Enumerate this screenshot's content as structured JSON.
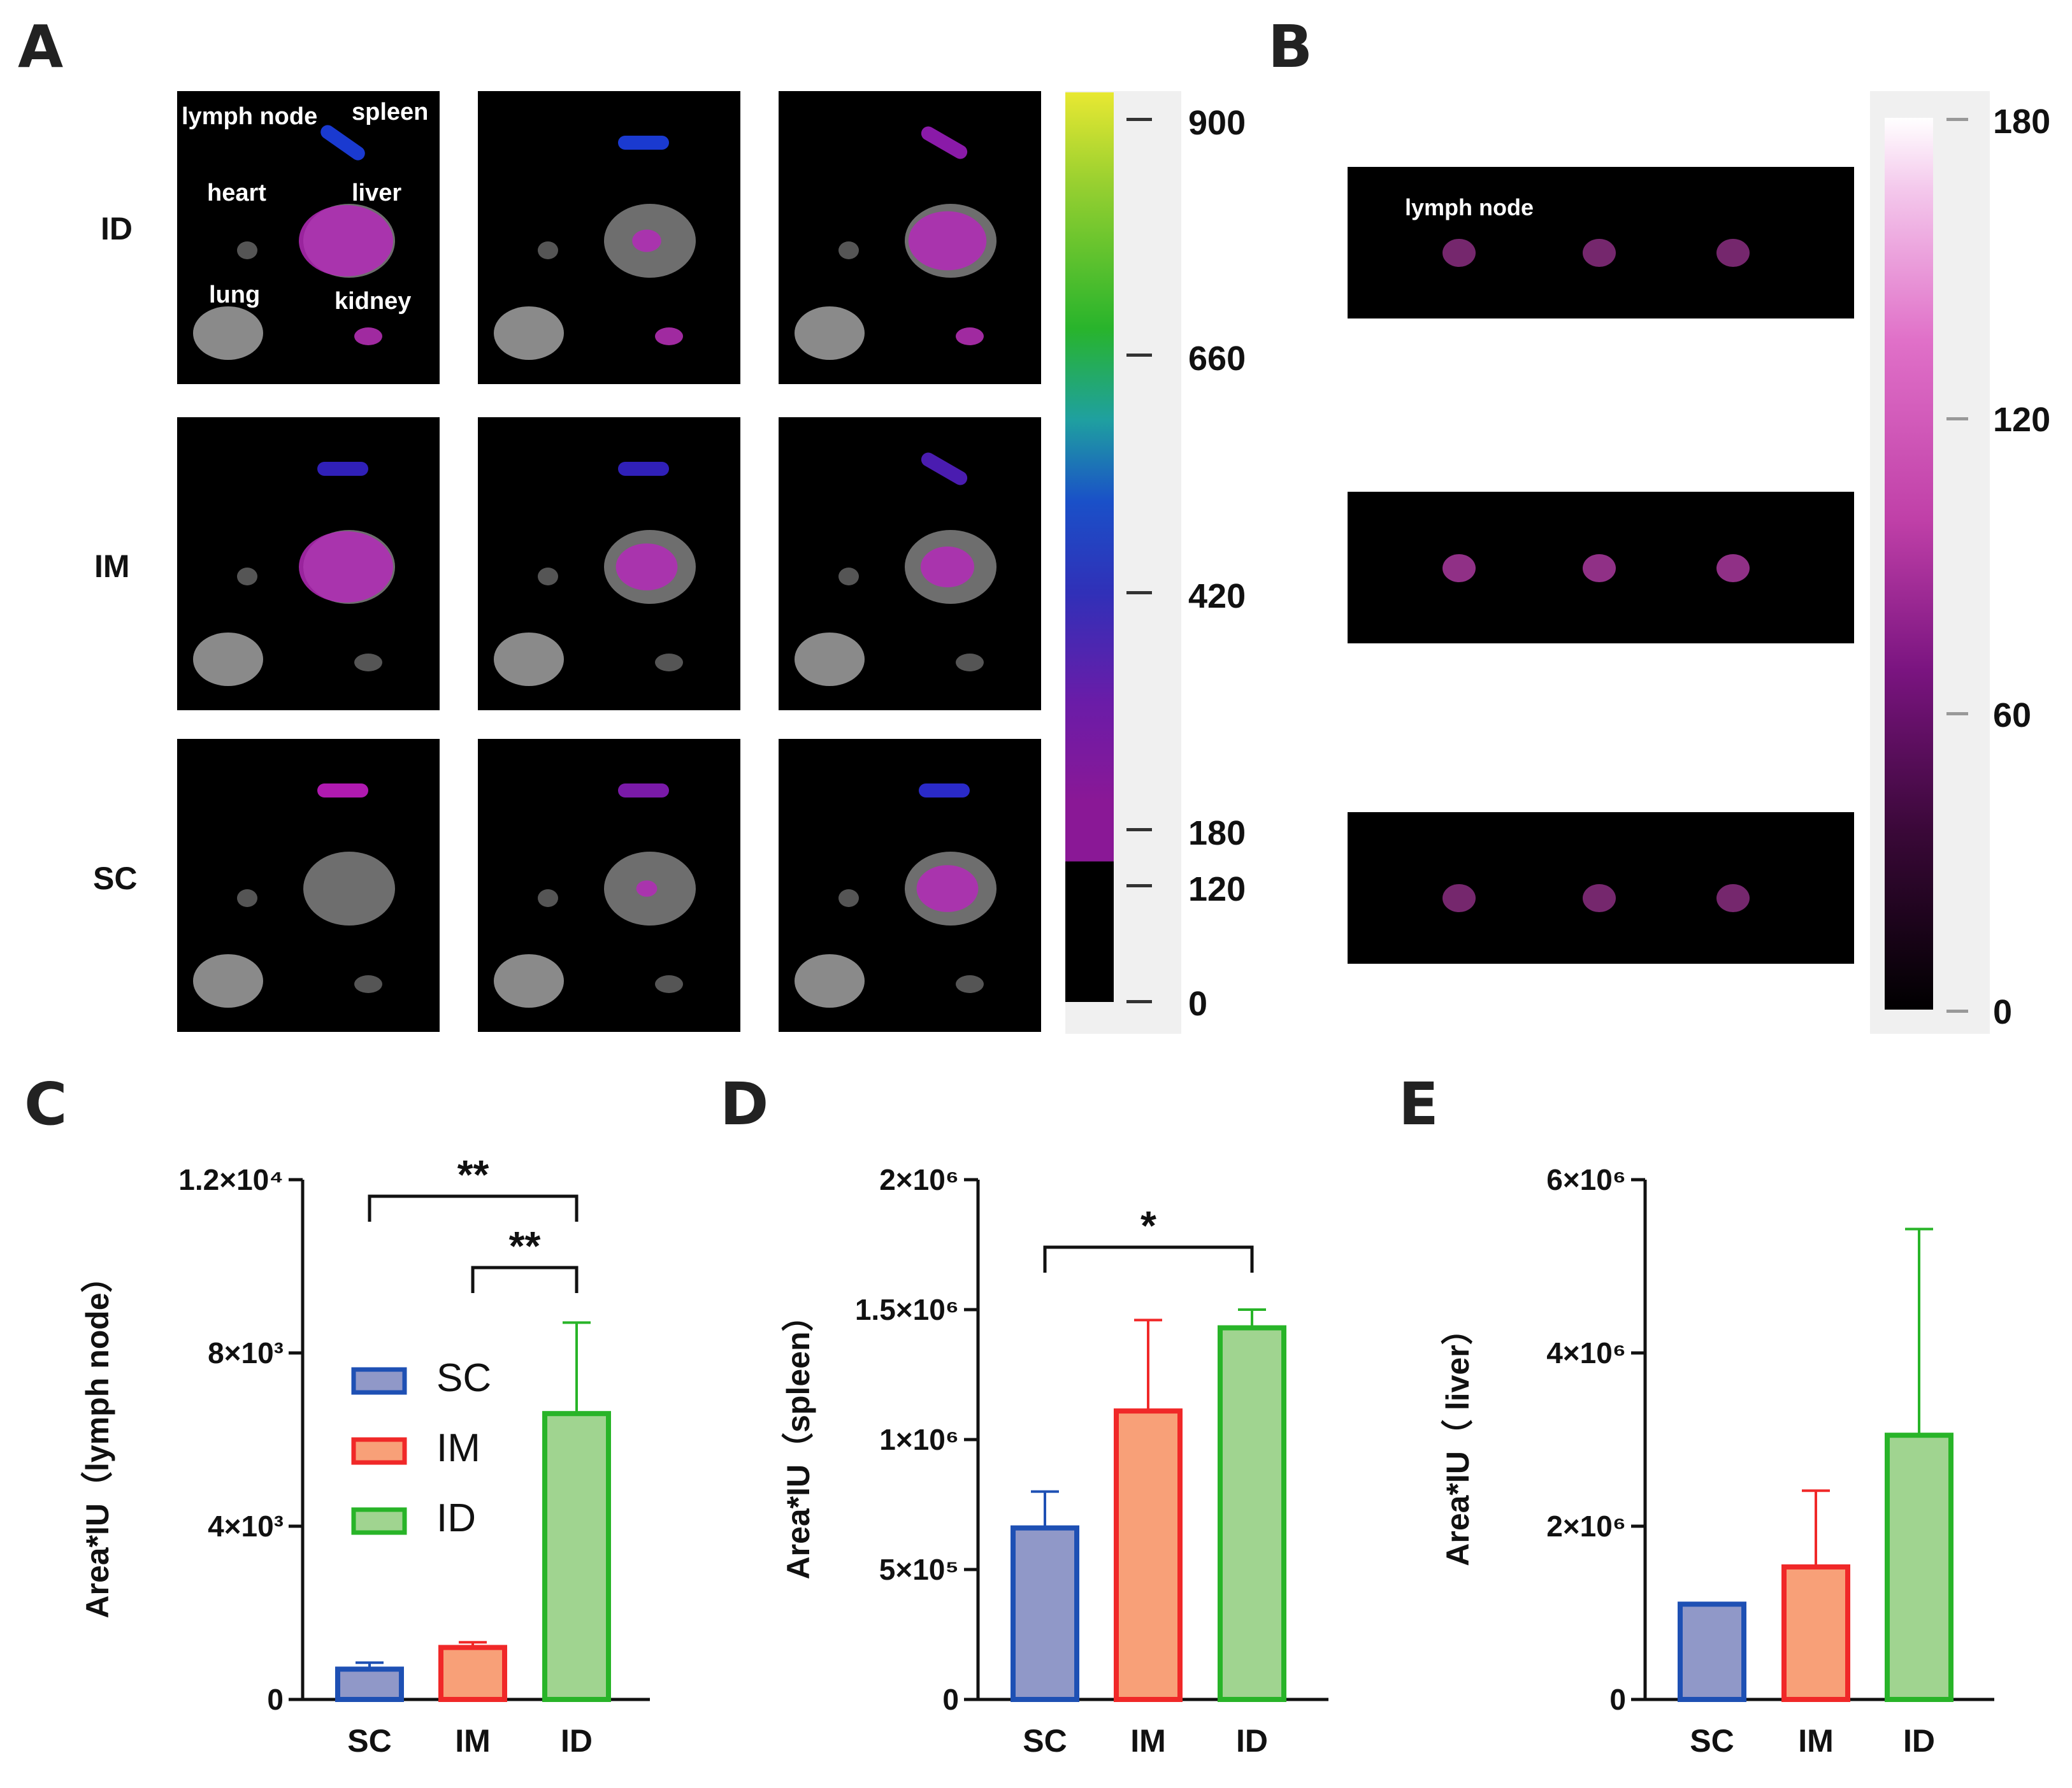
{
  "panels": {
    "A": "A",
    "B": "B",
    "C": "C",
    "D": "D",
    "E": "E"
  },
  "panelA": {
    "row_labels": [
      "ID",
      "IM",
      "SC"
    ],
    "organ_labels": {
      "lymph_node": "lymph node",
      "spleen": "spleen",
      "heart": "heart",
      "liver": "liver",
      "lung": "lung",
      "kidney": "kidney"
    },
    "colorbar": {
      "ticks": [
        "900",
        "660",
        "420",
        "180",
        "120",
        "0"
      ],
      "colors": [
        "#e6e632",
        "#20b428",
        "#1a4ac8",
        "#7a1aa0",
        "#000000"
      ]
    }
  },
  "panelB": {
    "label": "lymph node",
    "colorbar": {
      "ticks": [
        "180",
        "120",
        "60",
        "0"
      ],
      "colors": [
        "#ffffff",
        "#e070c8",
        "#7a1480",
        "#000000"
      ]
    }
  },
  "colors": {
    "SC": "#1e50b4",
    "SC_fill": "#9098c8",
    "IM": "#f02828",
    "IM_fill": "#f8a078",
    "ID": "#28b428",
    "ID_fill": "#a0d490"
  },
  "chart_data": [
    {
      "type": "bar",
      "panel": "C",
      "categories": [
        "SC",
        "IM",
        "ID"
      ],
      "values": [
        700,
        1200,
        6600
      ],
      "errors": [
        150,
        120,
        2100
      ],
      "ylabel": "Area*IU（lymph node）",
      "ylim": [
        0,
        12000
      ],
      "yticks": [
        {
          "v": 0,
          "label": "0"
        },
        {
          "v": 4000,
          "label": "4×10³"
        },
        {
          "v": 8000,
          "label": "8×10³"
        },
        {
          "v": 12000,
          "label": "1.2×10⁴"
        }
      ],
      "legend": [
        "SC",
        "IM",
        "ID"
      ],
      "significance": [
        {
          "from": 0,
          "to": 2,
          "label": "**"
        },
        {
          "from": 1,
          "to": 2,
          "label": "**"
        }
      ]
    },
    {
      "type": "bar",
      "panel": "D",
      "categories": [
        "SC",
        "IM",
        "ID"
      ],
      "values": [
        660000,
        1110000,
        1430000
      ],
      "errors": [
        140000,
        350000,
        70000
      ],
      "ylabel": "Area*IU（spleen）",
      "ylim": [
        0,
        2000000
      ],
      "yticks": [
        {
          "v": 0,
          "label": "0"
        },
        {
          "v": 500000,
          "label": "5×10⁵"
        },
        {
          "v": 1000000,
          "label": "1×10⁶"
        },
        {
          "v": 1500000,
          "label": "1.5×10⁶"
        },
        {
          "v": 2000000,
          "label": "2×10⁶"
        }
      ],
      "significance": [
        {
          "from": 0,
          "to": 2,
          "label": "*"
        }
      ]
    },
    {
      "type": "bar",
      "panel": "E",
      "categories": [
        "SC",
        "IM",
        "ID"
      ],
      "values": [
        1100000,
        1530000,
        3050000
      ],
      "errors": [
        0,
        880000,
        2380000
      ],
      "ylabel": "Area*IU（ liver）",
      "ylim": [
        0,
        6000000
      ],
      "yticks": [
        {
          "v": 0,
          "label": "0"
        },
        {
          "v": 2000000,
          "label": "2×10⁶"
        },
        {
          "v": 4000000,
          "label": "4×10⁶"
        },
        {
          "v": 6000000,
          "label": "6×10⁶"
        }
      ],
      "significance": []
    }
  ]
}
